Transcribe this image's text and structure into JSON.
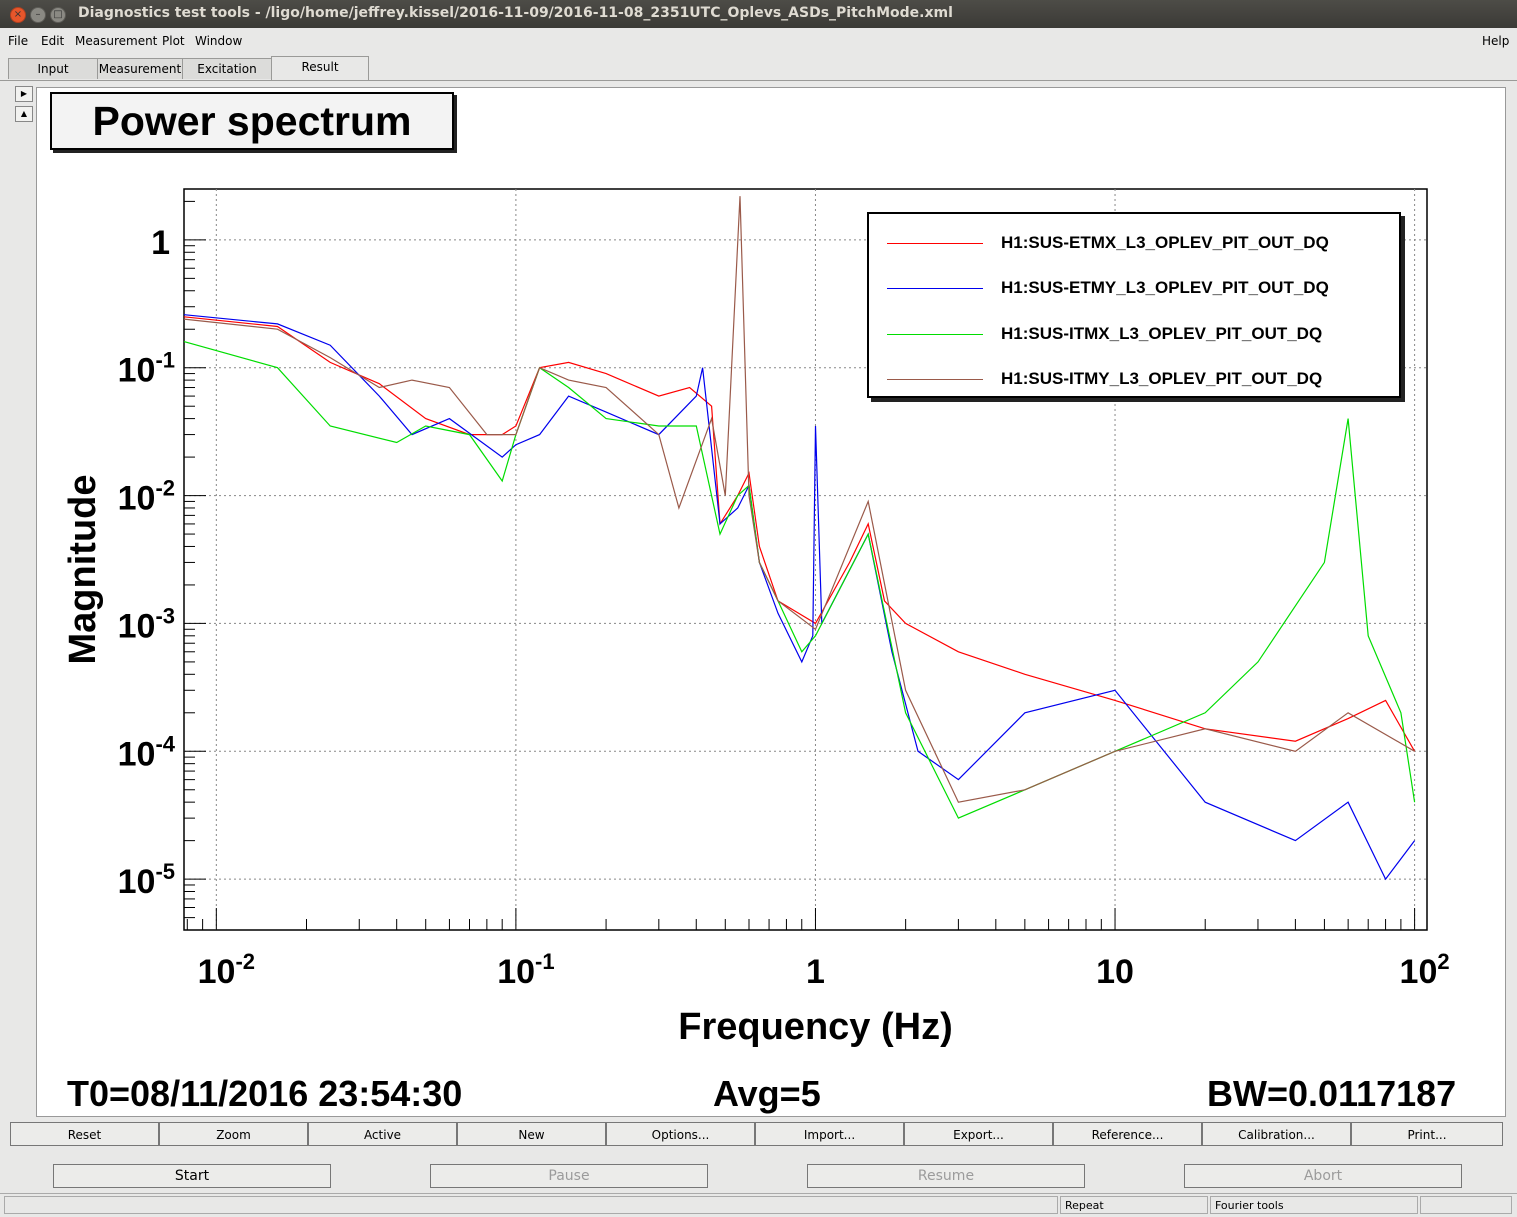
{
  "window": {
    "title": "Diagnostics test tools - /ligo/home/jeffrey.kissel/2016-11-09/2016-11-08_2351UTC_Oplevs_ASDs_PitchMode.xml",
    "controls": [
      "×",
      "–",
      "□"
    ]
  },
  "menu": {
    "items": [
      "File",
      "Edit",
      "Measurement",
      "Plot",
      "Window"
    ],
    "help": "Help"
  },
  "tabs": [
    {
      "label": "Input"
    },
    {
      "label": "Measurement"
    },
    {
      "label": "Excitation"
    },
    {
      "label": "Result",
      "active": true
    }
  ],
  "plot": {
    "title": "Power spectrum",
    "info": {
      "t0": "T0=08/11/2016 23:54:30",
      "avg": "Avg=5",
      "bw": "BW=0.0117187"
    }
  },
  "chart_data": {
    "type": "line",
    "title": "Power spectrum",
    "xlabel": "Frequency (Hz)",
    "ylabel": "Magnitude",
    "xscale": "log",
    "yscale": "log",
    "xlim": [
      0.0078,
      110
    ],
    "ylim": [
      4e-06,
      2.5
    ],
    "grid": true,
    "legend_position": "top-right",
    "x_ticks": [
      {
        "base": "10",
        "exp": "-2"
      },
      {
        "base": "10",
        "exp": "-1"
      },
      {
        "base": "1",
        "exp": ""
      },
      {
        "base": "10",
        "exp": ""
      },
      {
        "base": "10",
        "exp": "2"
      }
    ],
    "y_ticks": [
      {
        "base": "1",
        "exp": ""
      },
      {
        "base": "10",
        "exp": "-1"
      },
      {
        "base": "10",
        "exp": "-2"
      },
      {
        "base": "10",
        "exp": "-3"
      },
      {
        "base": "10",
        "exp": "-4"
      },
      {
        "base": "10",
        "exp": "-5"
      }
    ],
    "series": [
      {
        "name": "H1:SUS-ETMX_L3_OPLEV_PIT_OUT_DQ",
        "color": "#ff0000",
        "points": [
          [
            0.0078,
            0.25
          ],
          [
            0.016,
            0.21
          ],
          [
            0.024,
            0.11
          ],
          [
            0.035,
            0.075
          ],
          [
            0.05,
            0.04
          ],
          [
            0.07,
            0.03
          ],
          [
            0.09,
            0.03
          ],
          [
            0.1,
            0.035
          ],
          [
            0.12,
            0.1
          ],
          [
            0.15,
            0.11
          ],
          [
            0.2,
            0.09
          ],
          [
            0.3,
            0.06
          ],
          [
            0.38,
            0.07
          ],
          [
            0.45,
            0.05
          ],
          [
            0.48,
            0.006
          ],
          [
            0.55,
            0.01
          ],
          [
            0.6,
            0.015
          ],
          [
            0.65,
            0.004
          ],
          [
            0.75,
            0.0015
          ],
          [
            1.0,
            0.001
          ],
          [
            1.3,
            0.003
          ],
          [
            1.5,
            0.006
          ],
          [
            1.7,
            0.0015
          ],
          [
            2.0,
            0.001
          ],
          [
            3.0,
            0.0006
          ],
          [
            5.0,
            0.0004
          ],
          [
            10,
            0.00025
          ],
          [
            20,
            0.00015
          ],
          [
            40,
            0.00012
          ],
          [
            60,
            0.00018
          ],
          [
            80,
            0.00025
          ],
          [
            100,
            0.0001
          ]
        ]
      },
      {
        "name": "H1:SUS-ETMY_L3_OPLEV_PIT_OUT_DQ",
        "color": "#0000ee",
        "points": [
          [
            0.0078,
            0.26
          ],
          [
            0.016,
            0.22
          ],
          [
            0.024,
            0.15
          ],
          [
            0.035,
            0.06
          ],
          [
            0.045,
            0.03
          ],
          [
            0.06,
            0.04
          ],
          [
            0.09,
            0.02
          ],
          [
            0.1,
            0.025
          ],
          [
            0.12,
            0.03
          ],
          [
            0.15,
            0.06
          ],
          [
            0.2,
            0.045
          ],
          [
            0.3,
            0.03
          ],
          [
            0.4,
            0.06
          ],
          [
            0.42,
            0.1
          ],
          [
            0.48,
            0.006
          ],
          [
            0.55,
            0.008
          ],
          [
            0.6,
            0.012
          ],
          [
            0.65,
            0.003
          ],
          [
            0.75,
            0.0012
          ],
          [
            0.9,
            0.0005
          ],
          [
            0.98,
            0.0008
          ],
          [
            1.0,
            0.035
          ],
          [
            1.05,
            0.001
          ],
          [
            1.5,
            0.005
          ],
          [
            1.8,
            0.0006
          ],
          [
            2.2,
            0.0001
          ],
          [
            3.0,
            6e-05
          ],
          [
            5.0,
            0.0002
          ],
          [
            10,
            0.0003
          ],
          [
            20,
            4e-05
          ],
          [
            40,
            2e-05
          ],
          [
            60,
            4e-05
          ],
          [
            80,
            1e-05
          ],
          [
            100,
            2e-05
          ]
        ]
      },
      {
        "name": "H1:SUS-ITMX_L3_OPLEV_PIT_OUT_DQ",
        "color": "#00dd00",
        "points": [
          [
            0.0078,
            0.16
          ],
          [
            0.016,
            0.1
          ],
          [
            0.024,
            0.035
          ],
          [
            0.04,
            0.026
          ],
          [
            0.05,
            0.035
          ],
          [
            0.07,
            0.03
          ],
          [
            0.09,
            0.013
          ],
          [
            0.1,
            0.03
          ],
          [
            0.12,
            0.1
          ],
          [
            0.15,
            0.07
          ],
          [
            0.2,
            0.04
          ],
          [
            0.3,
            0.035
          ],
          [
            0.4,
            0.035
          ],
          [
            0.48,
            0.005
          ],
          [
            0.55,
            0.01
          ],
          [
            0.6,
            0.012
          ],
          [
            0.65,
            0.003
          ],
          [
            0.75,
            0.0015
          ],
          [
            0.9,
            0.0006
          ],
          [
            1.0,
            0.0008
          ],
          [
            1.5,
            0.005
          ],
          [
            2.0,
            0.0002
          ],
          [
            3.0,
            3e-05
          ],
          [
            5.0,
            5e-05
          ],
          [
            10,
            0.0001
          ],
          [
            20,
            0.0002
          ],
          [
            30,
            0.0005
          ],
          [
            50,
            0.003
          ],
          [
            60,
            0.04
          ],
          [
            70,
            0.0008
          ],
          [
            90,
            0.0002
          ],
          [
            100,
            4e-05
          ]
        ]
      },
      {
        "name": "H1:SUS-ITMY_L3_OPLEV_PIT_OUT_DQ",
        "color": "#9a5a4a",
        "points": [
          [
            0.0078,
            0.24
          ],
          [
            0.016,
            0.2
          ],
          [
            0.024,
            0.12
          ],
          [
            0.035,
            0.07
          ],
          [
            0.045,
            0.08
          ],
          [
            0.06,
            0.07
          ],
          [
            0.08,
            0.03
          ],
          [
            0.1,
            0.03
          ],
          [
            0.12,
            0.1
          ],
          [
            0.15,
            0.08
          ],
          [
            0.2,
            0.07
          ],
          [
            0.3,
            0.03
          ],
          [
            0.35,
            0.008
          ],
          [
            0.45,
            0.04
          ],
          [
            0.5,
            0.01
          ],
          [
            0.56,
            2.2
          ],
          [
            0.6,
            0.01
          ],
          [
            0.65,
            0.003
          ],
          [
            0.75,
            0.0015
          ],
          [
            1.0,
            0.0009
          ],
          [
            1.5,
            0.009
          ],
          [
            2.0,
            0.0003
          ],
          [
            3.0,
            4e-05
          ],
          [
            5.0,
            5e-05
          ],
          [
            10,
            0.0001
          ],
          [
            20,
            0.00015
          ],
          [
            40,
            0.0001
          ],
          [
            60,
            0.0002
          ],
          [
            100,
            0.0001
          ]
        ]
      }
    ]
  },
  "plot_buttons": [
    "Reset",
    "Zoom",
    "Active",
    "New",
    "Options...",
    "Import...",
    "Export...",
    "Reference...",
    "Calibration...",
    "Print..."
  ],
  "control_buttons": [
    {
      "label": "Start",
      "enabled": true
    },
    {
      "label": "Pause",
      "enabled": false
    },
    {
      "label": "Resume",
      "enabled": false
    },
    {
      "label": "Abort",
      "enabled": false
    }
  ],
  "status": {
    "cell1": "Repeat",
    "cell2": "Fourier tools"
  }
}
